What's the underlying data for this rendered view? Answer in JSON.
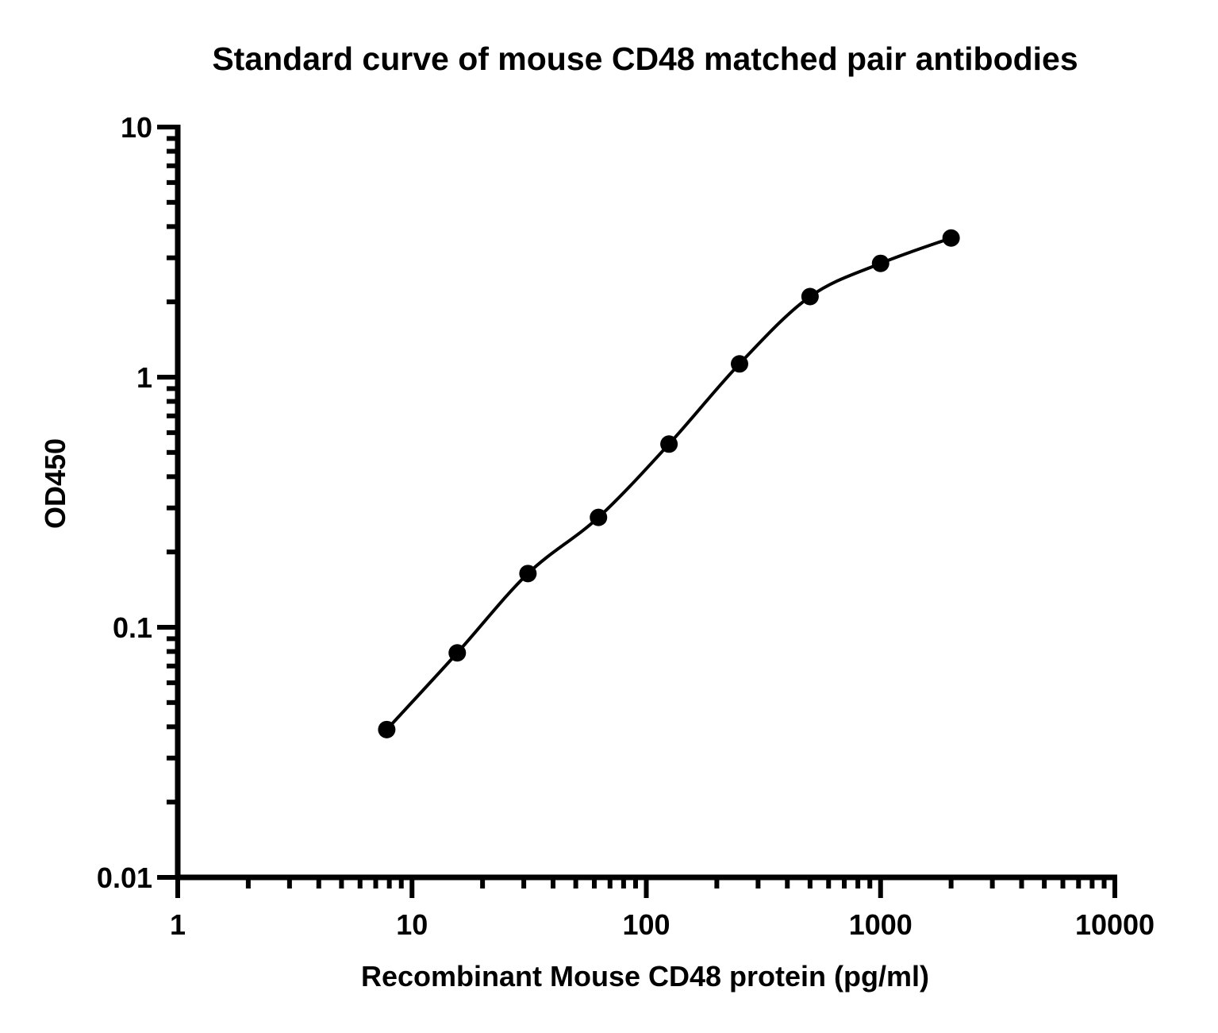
{
  "chart_data": {
    "type": "scatter",
    "title": "Standard curve of mouse CD48 matched pair antibodies",
    "xlabel": "Recombinant Mouse CD48 protein (pg/ml)",
    "ylabel": "OD450",
    "x_scale": "log",
    "y_scale": "log",
    "xlim": [
      1,
      10000
    ],
    "ylim": [
      0.01,
      10
    ],
    "x_ticks": [
      1,
      10,
      100,
      1000,
      10000
    ],
    "x_tick_labels": [
      "1",
      "10",
      "100",
      "1000",
      "10000"
    ],
    "y_ticks": [
      0.01,
      0.1,
      1,
      10
    ],
    "y_tick_labels": [
      "0.01",
      "0.1",
      "1",
      "10"
    ],
    "grid": false,
    "series": [
      {
        "x": [
          7.8,
          15.6,
          31.25,
          62.5,
          125,
          250,
          500,
          1000,
          2000
        ],
        "y": [
          0.039,
          0.079,
          0.164,
          0.275,
          0.54,
          1.13,
          2.1,
          2.85,
          3.6
        ],
        "fit_curve": true,
        "color": "#000000"
      }
    ]
  }
}
